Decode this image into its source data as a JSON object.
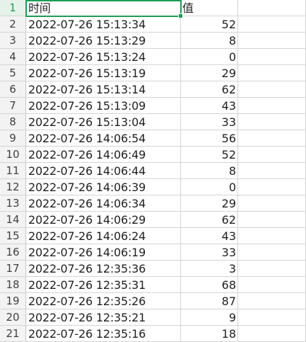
{
  "header": {
    "row": "1",
    "col_a": "时间",
    "col_b": "值"
  },
  "rows": [
    {
      "row": "2",
      "time": "2022-07-26 15:13:34",
      "value": "52"
    },
    {
      "row": "3",
      "time": "2022-07-26 15:13:29",
      "value": "8"
    },
    {
      "row": "4",
      "time": "2022-07-26 15:13:24",
      "value": "0"
    },
    {
      "row": "5",
      "time": "2022-07-26 15:13:19",
      "value": "29"
    },
    {
      "row": "6",
      "time": "2022-07-26 15:13:14",
      "value": "62"
    },
    {
      "row": "7",
      "time": "2022-07-26 15:13:09",
      "value": "43"
    },
    {
      "row": "8",
      "time": "2022-07-26 15:13:04",
      "value": "33"
    },
    {
      "row": "9",
      "time": "2022-07-26 14:06:54",
      "value": "56"
    },
    {
      "row": "10",
      "time": "2022-07-26 14:06:49",
      "value": "52"
    },
    {
      "row": "11",
      "time": "2022-07-26 14:06:44",
      "value": "8"
    },
    {
      "row": "12",
      "time": "2022-07-26 14:06:39",
      "value": "0"
    },
    {
      "row": "13",
      "time": "2022-07-26 14:06:34",
      "value": "29"
    },
    {
      "row": "14",
      "time": "2022-07-26 14:06:29",
      "value": "62"
    },
    {
      "row": "15",
      "time": "2022-07-26 14:06:24",
      "value": "43"
    },
    {
      "row": "16",
      "time": "2022-07-26 14:06:19",
      "value": "33"
    },
    {
      "row": "17",
      "time": "2022-07-26 12:35:36",
      "value": "3"
    },
    {
      "row": "18",
      "time": "2022-07-26 12:35:31",
      "value": "68"
    },
    {
      "row": "19",
      "time": "2022-07-26 12:35:26",
      "value": "87"
    },
    {
      "row": "20",
      "time": "2022-07-26 12:35:21",
      "value": "9"
    },
    {
      "row": "21",
      "time": "2022-07-26 12:35:16",
      "value": "18"
    }
  ],
  "colors": {
    "selection": "#1e9b58",
    "grid": "#d4d4d4",
    "row_header_bg": "#f3f3f3"
  }
}
